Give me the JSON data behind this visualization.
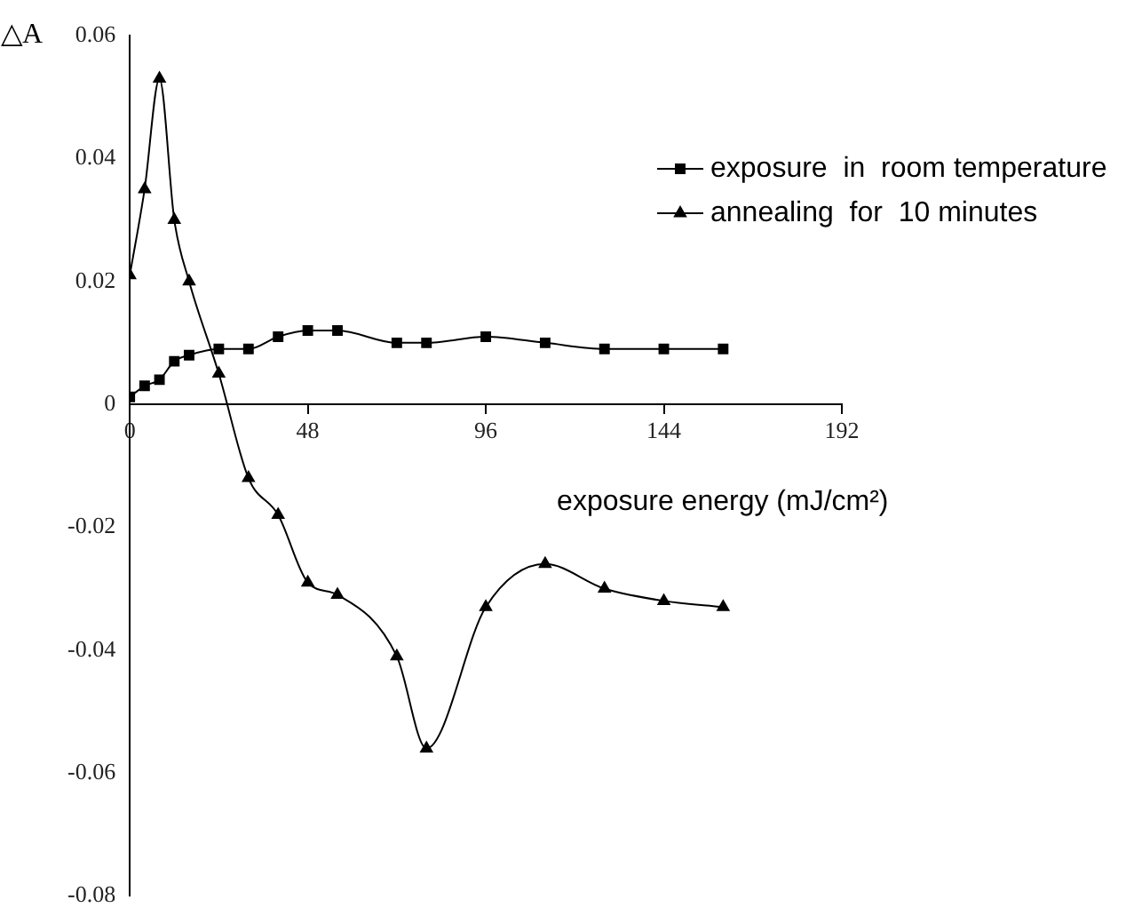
{
  "chart_data": {
    "type": "line",
    "ylabel": "△A",
    "xlabel": "exposure energy (mJ/cm²)",
    "x": [
      0,
      4,
      8,
      12,
      16,
      24,
      32,
      40,
      48,
      56,
      72,
      80,
      96,
      112,
      128,
      144,
      160
    ],
    "series": [
      {
        "name": "exposure  in  room temperature",
        "color": "#000000",
        "marker": "square",
        "values": [
          0.0012,
          0.003,
          0.004,
          0.007,
          0.008,
          0.009,
          0.009,
          0.011,
          0.012,
          0.012,
          0.01,
          0.01,
          0.011,
          0.01,
          0.009,
          0.009,
          0.009
        ]
      },
      {
        "name": "annealing  for  10 minutes",
        "color": "#000000",
        "marker": "triangle",
        "values": [
          0.021,
          0.035,
          0.053,
          0.03,
          0.02,
          0.005,
          -0.012,
          -0.018,
          -0.029,
          -0.031,
          -0.041,
          -0.056,
          -0.033,
          -0.026,
          -0.03,
          -0.032,
          -0.033
        ]
      }
    ],
    "xlim": [
      0,
      192
    ],
    "xticks": [
      0,
      48,
      96,
      144,
      192
    ],
    "ylim": [
      -0.08,
      0.06
    ],
    "yticks": [
      -0.08,
      -0.06,
      -0.04,
      -0.02,
      0,
      0.02,
      0.04,
      0.06
    ],
    "grid": false,
    "legend": "top right"
  }
}
